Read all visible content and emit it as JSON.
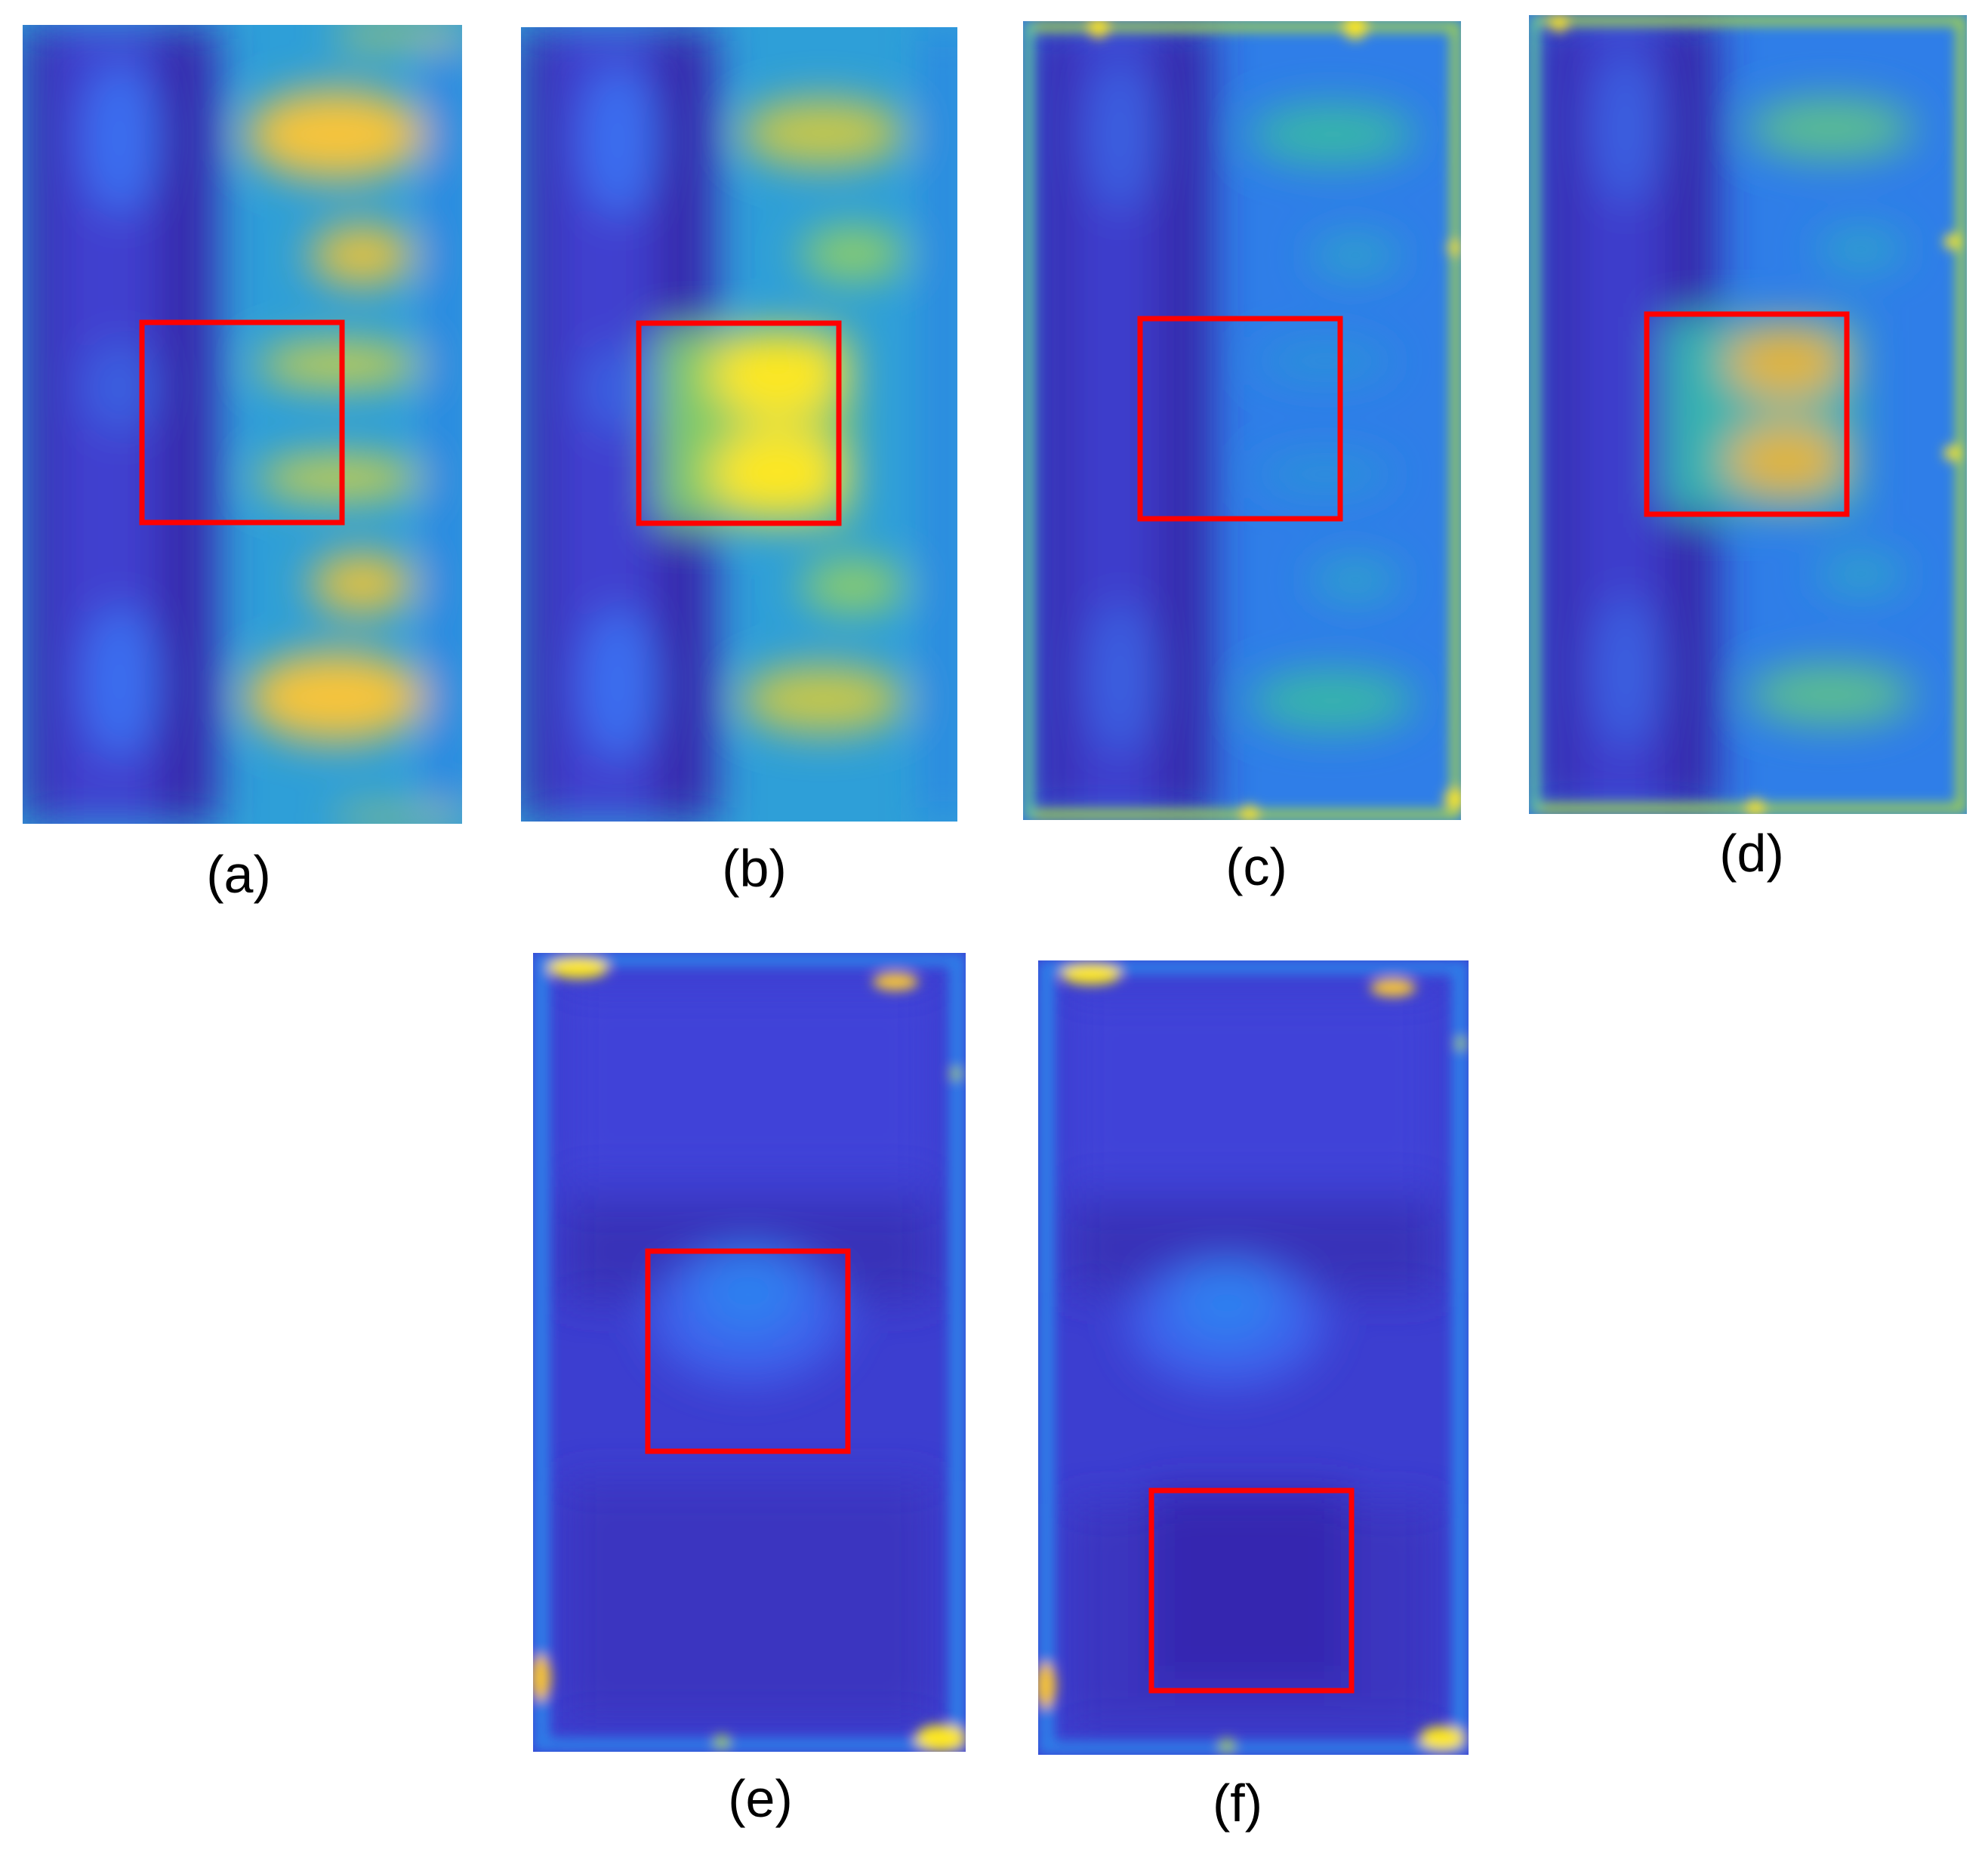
{
  "panels": [
    {
      "label": "(a)"
    },
    {
      "label": "(b)"
    },
    {
      "label": "(c)"
    },
    {
      "label": "(d)"
    },
    {
      "label": "(e)"
    },
    {
      "label": "(f)"
    }
  ],
  "colors": {
    "background": "#ffffff",
    "highlight_box": "#ff0000",
    "colormap_low": "#3b2bbd",
    "colormap_mid_blue": "#2f6cf0",
    "colormap_cyan": "#1fb3c3",
    "colormap_green": "#7dc96a",
    "colormap_yellow": "#fde724",
    "colormap_orange": "#f7b733"
  }
}
